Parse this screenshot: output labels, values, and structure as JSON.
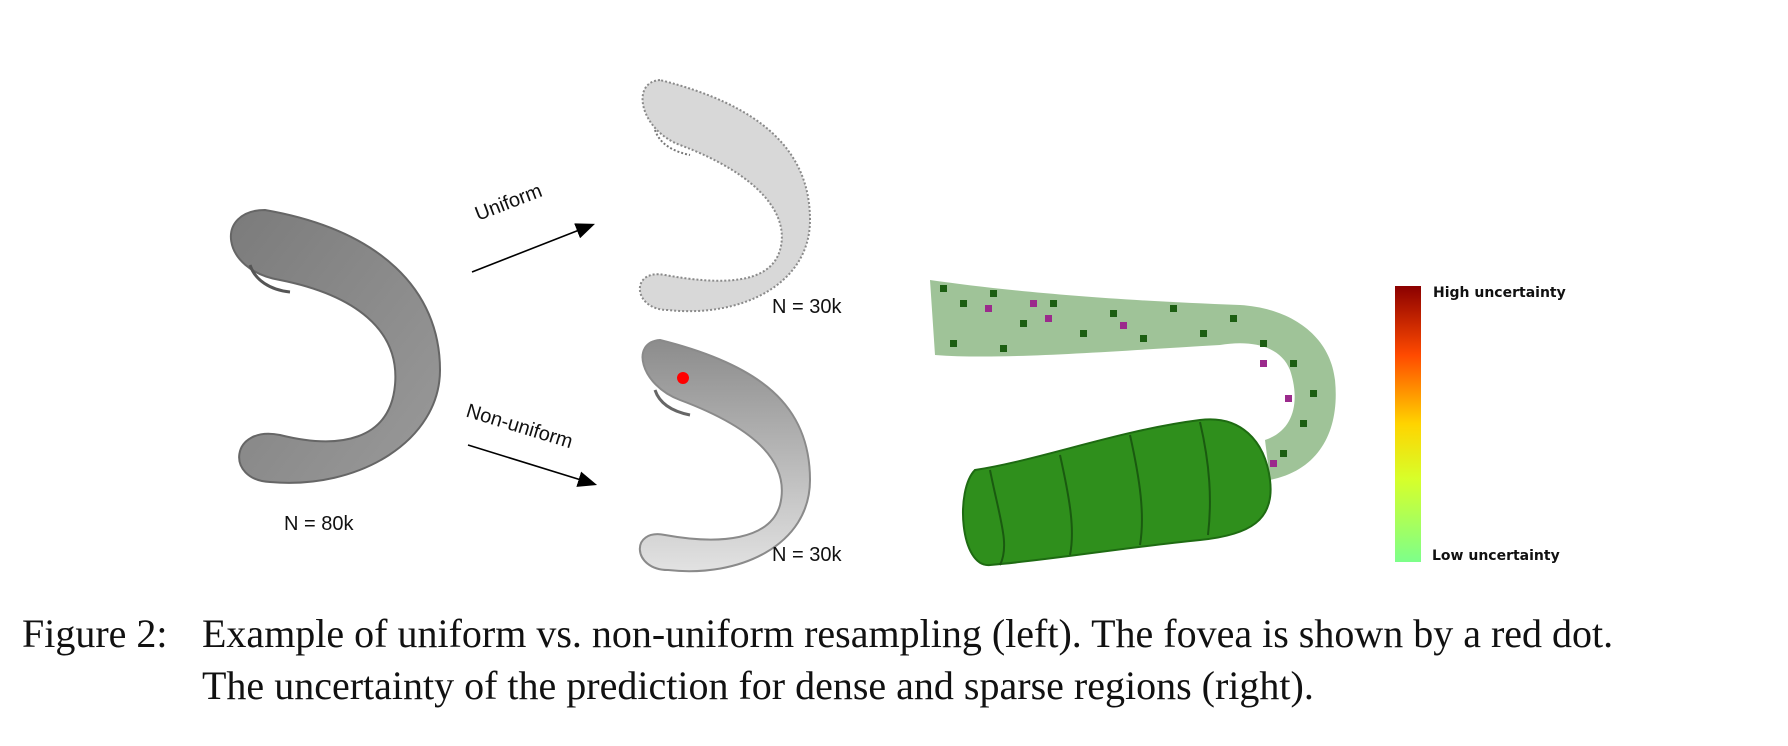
{
  "figure": {
    "arrow_top_label": "Uniform",
    "arrow_bottom_label": "Non-uniform",
    "n_original": "N = 80k",
    "n_uniform": "N = 30k",
    "n_nonuniform": "N = 30k",
    "legend_high": "High uncertainty",
    "legend_low": "Low uncertainty",
    "colors": {
      "gray_dark": "#7a7a7a",
      "gray_light": "#c8c8c8",
      "fovea_red": "#ff0000",
      "green_dark": "#1e6b12",
      "green_mid": "#2f8f1c",
      "magenta": "#9b2a8c",
      "scale_high": "#8b0000",
      "scale_mid": "#ffd400",
      "scale_low": "#7dff8a"
    }
  },
  "caption": {
    "label": "Figure 2:",
    "line1": "Example of uniform vs. non-uniform resampling (left). The fovea is shown by a red dot.",
    "line2": "The uncertainty of the prediction for dense and sparse regions (right)."
  }
}
